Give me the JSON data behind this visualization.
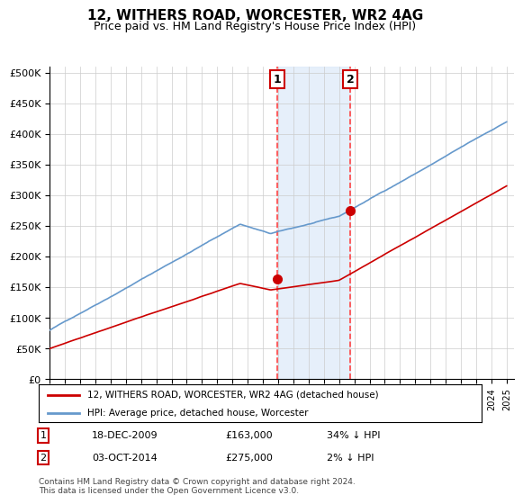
{
  "title": "12, WITHERS ROAD, WORCESTER, WR2 4AG",
  "subtitle": "Price paid vs. HM Land Registry's House Price Index (HPI)",
  "ylabel_ticks": [
    "£0",
    "£50K",
    "£100K",
    "£150K",
    "£200K",
    "£250K",
    "£300K",
    "£350K",
    "£400K",
    "£450K",
    "£500K"
  ],
  "ytick_values": [
    0,
    50000,
    100000,
    150000,
    200000,
    250000,
    300000,
    350000,
    400000,
    450000,
    500000
  ],
  "ylim": [
    0,
    510000
  ],
  "x_start_year": 1995,
  "x_end_year": 2025,
  "transaction1": {
    "date": "2009-12-18",
    "price": 163000,
    "label": "1",
    "pct": "34%↓ HPI",
    "x": 2009.96
  },
  "transaction2": {
    "date": "2014-10-03",
    "price": 275000,
    "label": "2",
    "pct": "2%↓ HPI",
    "x": 2014.75
  },
  "highlight_color": "#dce9f8",
  "highlight_alpha": 0.7,
  "red_dashed_color": "#ff4444",
  "legend_label1": "12, WITHERS ROAD, WORCESTER, WR2 4AG (detached house)",
  "legend_label2": "HPI: Average price, detached house, Worcester",
  "footer": "Contains HM Land Registry data © Crown copyright and database right 2024.\nThis data is licensed under the Open Government Licence v3.0.",
  "background_color": "#ffffff",
  "plot_bg_color": "#ffffff",
  "grid_color": "#cccccc",
  "price_line_color": "#cc0000",
  "hpi_line_color": "#6699cc"
}
